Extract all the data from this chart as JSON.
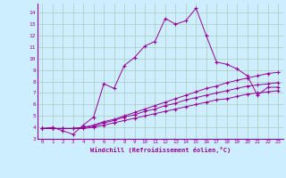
{
  "background_color": "#cceeff",
  "grid_color": "#aaccbb",
  "line_color": "#990099",
  "xlim": [
    -0.5,
    23.5
  ],
  "ylim": [
    3,
    14.8
  ],
  "xticks": [
    0,
    1,
    2,
    3,
    4,
    5,
    6,
    7,
    8,
    9,
    10,
    11,
    12,
    13,
    14,
    15,
    16,
    17,
    18,
    19,
    20,
    21,
    22,
    23
  ],
  "yticks": [
    3,
    4,
    5,
    6,
    7,
    8,
    9,
    10,
    11,
    12,
    13,
    14
  ],
  "xlabel": "Windchill (Refroidissement éolien,°C)",
  "series": [
    [
      3.9,
      4.0,
      3.7,
      3.4,
      4.2,
      4.9,
      7.8,
      7.4,
      9.4,
      10.1,
      11.1,
      11.5,
      13.5,
      13.0,
      13.3,
      14.4,
      12.0,
      9.7,
      9.5,
      9.1,
      8.5,
      6.8,
      7.5,
      7.5
    ],
    [
      3.9,
      3.9,
      3.9,
      3.9,
      4.0,
      4.2,
      4.5,
      4.7,
      5.0,
      5.3,
      5.6,
      5.9,
      6.2,
      6.5,
      6.8,
      7.1,
      7.4,
      7.6,
      7.9,
      8.1,
      8.3,
      8.5,
      8.7,
      8.8
    ],
    [
      3.9,
      3.9,
      3.9,
      3.9,
      4.0,
      4.1,
      4.4,
      4.6,
      4.9,
      5.1,
      5.4,
      5.6,
      5.9,
      6.1,
      6.4,
      6.6,
      6.8,
      7.0,
      7.2,
      7.4,
      7.6,
      7.7,
      7.8,
      7.9
    ],
    [
      3.9,
      3.9,
      3.9,
      3.9,
      3.9,
      4.0,
      4.2,
      4.4,
      4.6,
      4.8,
      5.0,
      5.2,
      5.4,
      5.6,
      5.8,
      6.0,
      6.2,
      6.4,
      6.5,
      6.7,
      6.9,
      7.0,
      7.1,
      7.2
    ]
  ]
}
